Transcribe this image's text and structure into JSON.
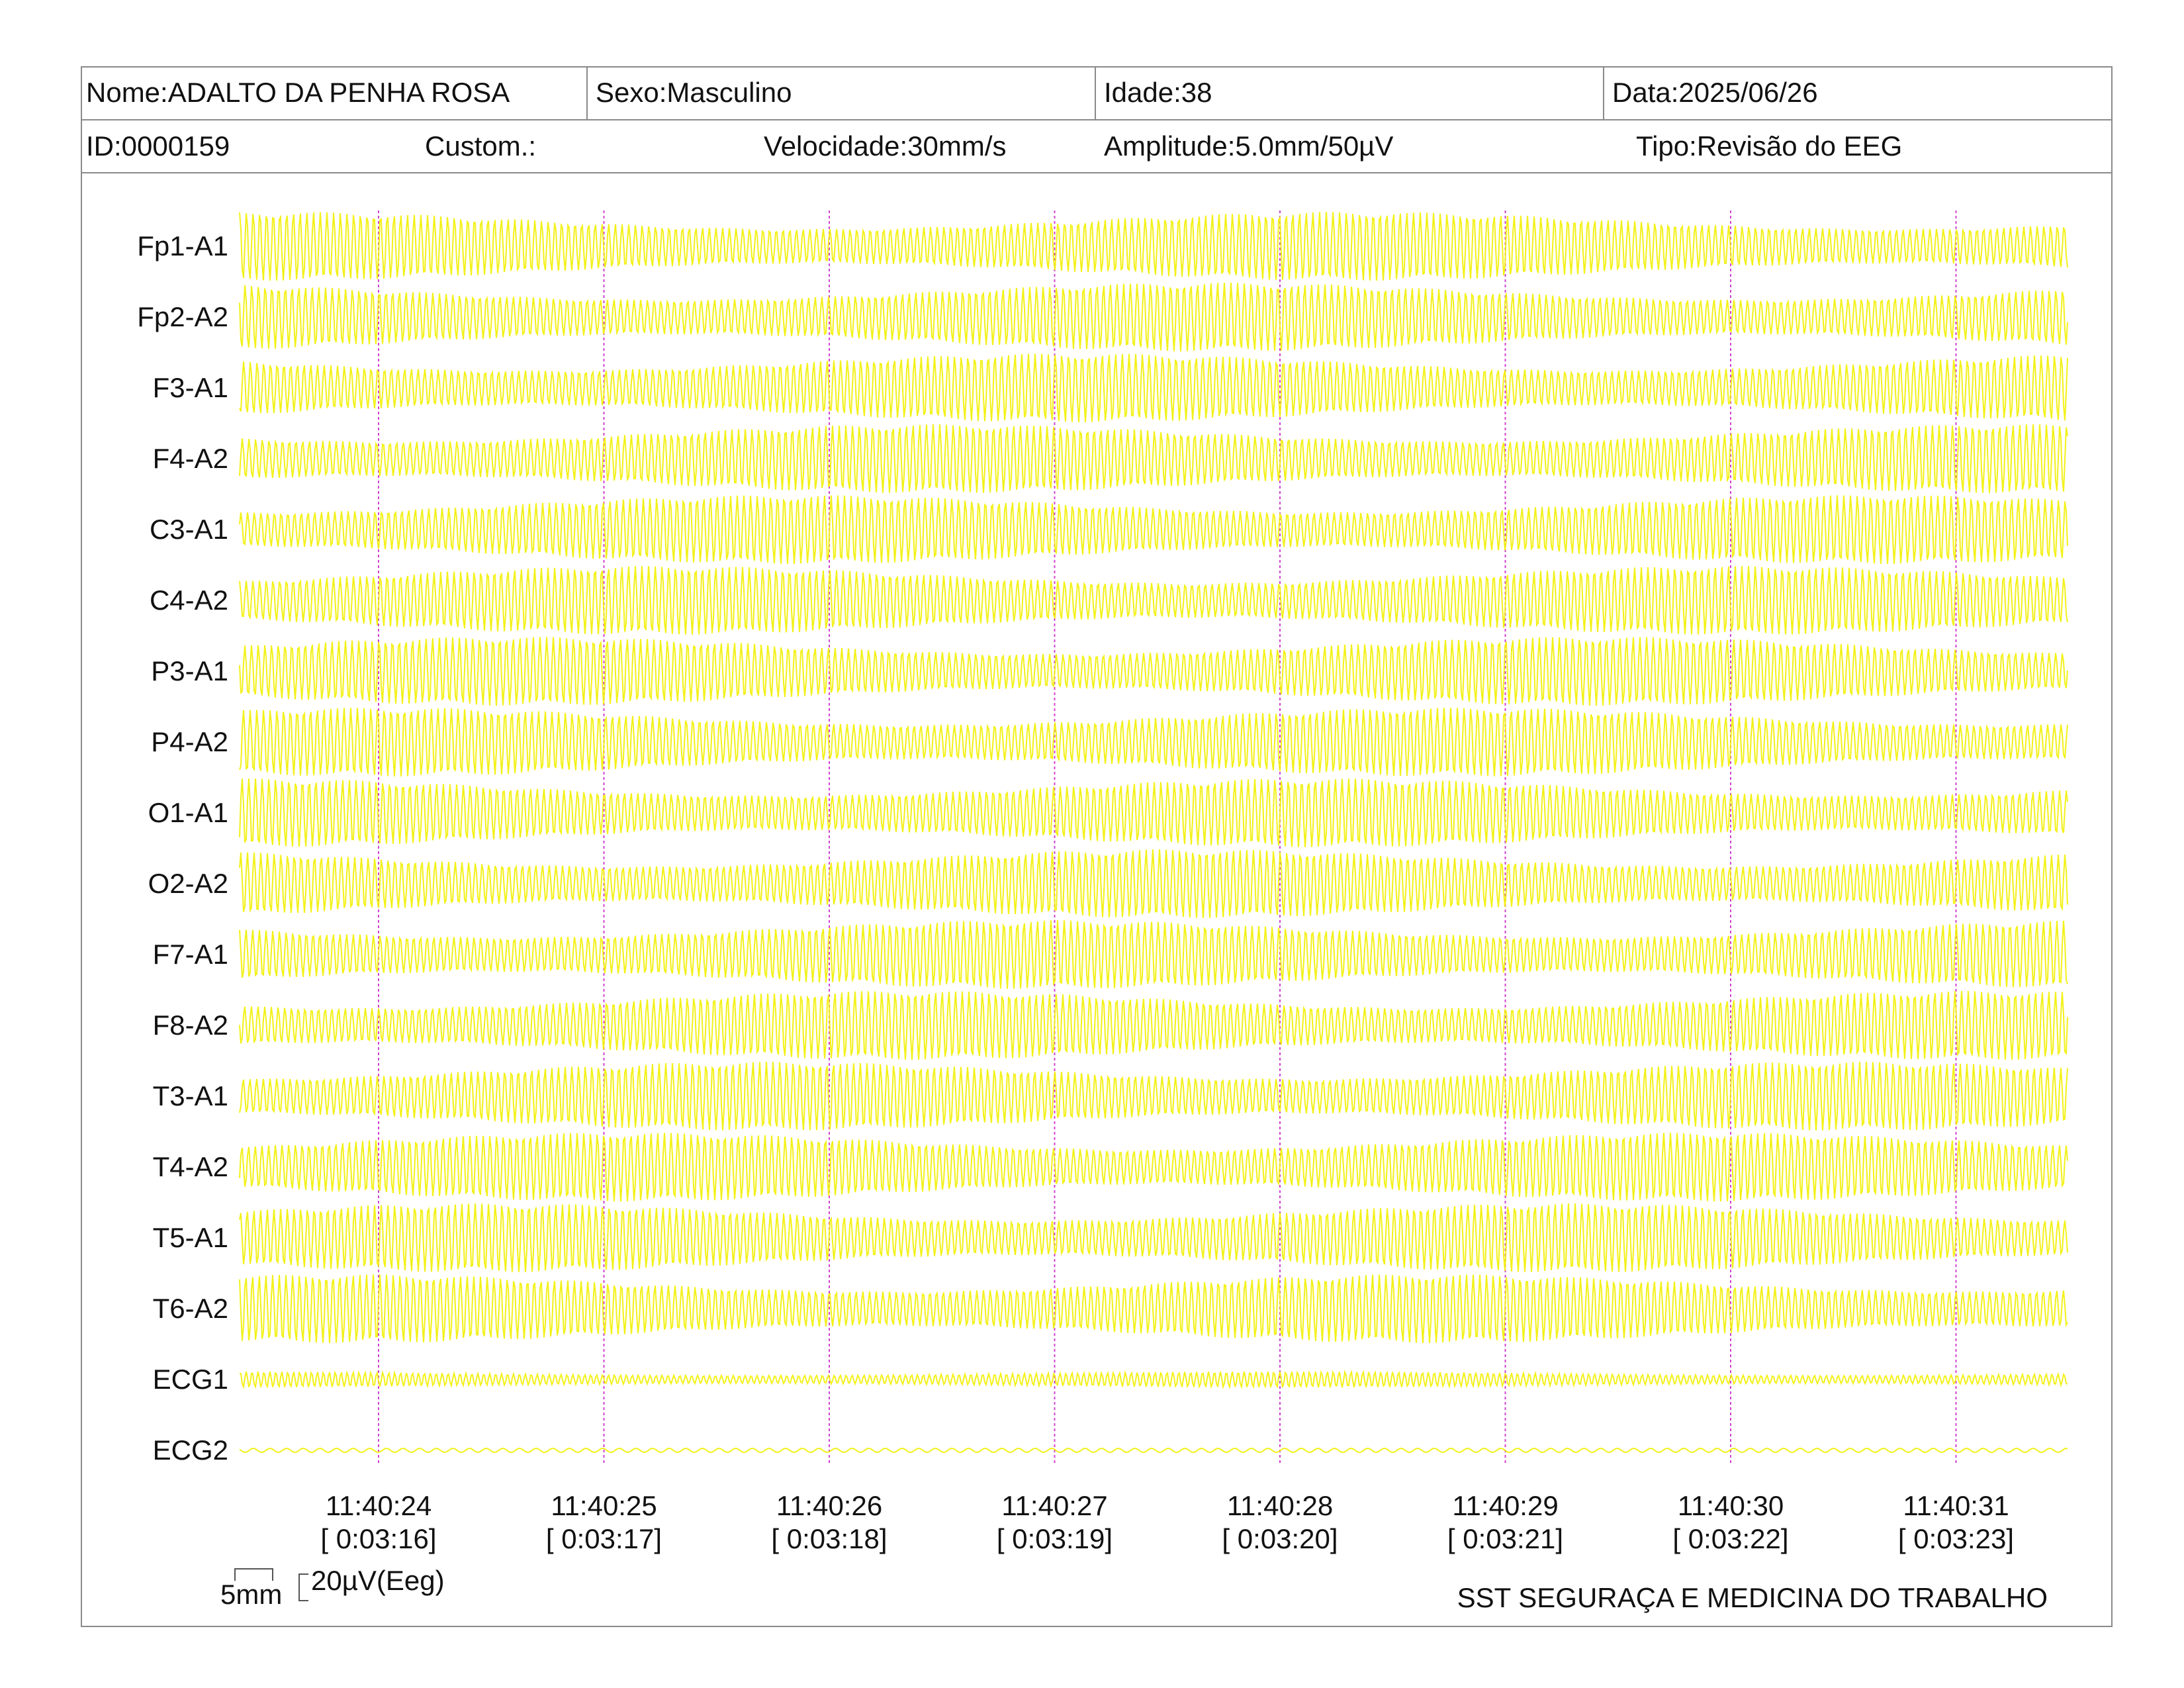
{
  "header": {
    "name": "Nome:ADALTO DA PENHA ROSA",
    "sex": "Sexo:Masculino",
    "age": "Idade:38",
    "date": "Data:2025/06/26",
    "id": "ID:0000159",
    "custom": "Custom.:",
    "speed": "Velocidade:30mm/s",
    "amplitude": "Amplitude:5.0mm/50µV",
    "type": "Tipo:Revisão do EEG"
  },
  "channels": [
    {
      "label": "Fp1-A1"
    },
    {
      "label": "Fp2-A2"
    },
    {
      "label": "F3-A1"
    },
    {
      "label": "F4-A2"
    },
    {
      "label": "C3-A1"
    },
    {
      "label": "C4-A2"
    },
    {
      "label": "P3-A1"
    },
    {
      "label": "P4-A2"
    },
    {
      "label": "O1-A1"
    },
    {
      "label": "O2-A2"
    },
    {
      "label": "F7-A1"
    },
    {
      "label": "F8-A2"
    },
    {
      "label": "T3-A1"
    },
    {
      "label": "T4-A2"
    },
    {
      "label": "T5-A1"
    },
    {
      "label": "T6-A2"
    },
    {
      "label": "ECG1"
    },
    {
      "label": "ECG2"
    }
  ],
  "time_marks": [
    {
      "clock": "11:40:24",
      "elapsed": "[ 0:03:16]"
    },
    {
      "clock": "11:40:25",
      "elapsed": "[ 0:03:17]"
    },
    {
      "clock": "11:40:26",
      "elapsed": "[ 0:03:18]"
    },
    {
      "clock": "11:40:27",
      "elapsed": "[ 0:03:19]"
    },
    {
      "clock": "11:40:28",
      "elapsed": "[ 0:03:20]"
    },
    {
      "clock": "11:40:29",
      "elapsed": "[ 0:03:21]"
    },
    {
      "clock": "11:40:30",
      "elapsed": "[ 0:03:22]"
    },
    {
      "clock": "11:40:31",
      "elapsed": "[ 0:03:23]"
    }
  ],
  "calibration": {
    "mm_label": "5mm",
    "uv_label": "20µV(Eeg)"
  },
  "footer": "SST SEGURAÇA E MEDICINA DO TRABALHO",
  "colors": {
    "trace": "#f2f000",
    "marker": "#d040d0",
    "border": "#8a8a8a"
  }
}
